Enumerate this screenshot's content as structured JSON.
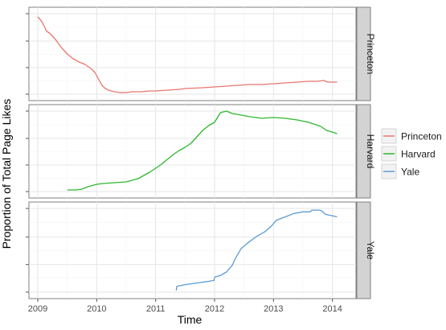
{
  "chart_data": {
    "type": "line",
    "xlabel": "Time",
    "ylabel": "Proportion of Total Page Likes",
    "xlim": [
      2008.85,
      2014.4
    ],
    "x_ticks": [
      2009,
      2010,
      2011,
      2012,
      2013,
      2014
    ],
    "x_tick_labels": [
      "2009",
      "2010",
      "2011",
      "2012",
      "2013",
      "2014"
    ],
    "ylim": [
      0,
      1
    ],
    "y_tick_labels_shown": false,
    "grid": true,
    "facet_direction": "vertical",
    "legend_position": "right",
    "series": [
      {
        "name": "Princeton",
        "color": "#e8766f",
        "x": [
          2009.0,
          2009.05,
          2009.1,
          2009.15,
          2009.2,
          2009.3,
          2009.4,
          2009.5,
          2009.6,
          2009.7,
          2009.8,
          2009.9,
          2009.97,
          2010.05,
          2010.1,
          2010.15,
          2010.2,
          2010.3,
          2010.4,
          2010.5,
          2010.6,
          2010.75,
          2010.9,
          2011.0,
          2011.2,
          2011.4,
          2011.5,
          2011.8,
          2012.0,
          2012.2,
          2012.4,
          2012.6,
          2012.8,
          2013.0,
          2013.2,
          2013.4,
          2013.6,
          2013.75,
          2013.85,
          2013.92,
          2014.08
        ],
        "values": [
          0.96,
          0.92,
          0.86,
          0.78,
          0.76,
          0.68,
          0.58,
          0.5,
          0.44,
          0.4,
          0.37,
          0.32,
          0.27,
          0.16,
          0.1,
          0.07,
          0.05,
          0.03,
          0.02,
          0.02,
          0.03,
          0.03,
          0.04,
          0.04,
          0.05,
          0.06,
          0.07,
          0.08,
          0.09,
          0.1,
          0.11,
          0.12,
          0.12,
          0.13,
          0.14,
          0.15,
          0.16,
          0.16,
          0.17,
          0.15,
          0.15
        ]
      },
      {
        "name": "Harvard",
        "color": "#2eb82e",
        "x": [
          2009.5,
          2009.65,
          2009.75,
          2009.85,
          2010.0,
          2010.1,
          2010.3,
          2010.5,
          2010.7,
          2010.9,
          2011.0,
          2011.1,
          2011.2,
          2011.3,
          2011.4,
          2011.5,
          2011.6,
          2011.7,
          2011.8,
          2011.9,
          2012.0,
          2012.1,
          2012.2,
          2012.3,
          2012.45,
          2012.6,
          2012.8,
          2013.0,
          2013.2,
          2013.4,
          2013.6,
          2013.8,
          2013.9,
          2014.08
        ],
        "values": [
          0.02,
          0.02,
          0.03,
          0.06,
          0.09,
          0.1,
          0.11,
          0.12,
          0.16,
          0.24,
          0.29,
          0.34,
          0.4,
          0.46,
          0.51,
          0.55,
          0.6,
          0.68,
          0.76,
          0.82,
          0.86,
          0.98,
          1.0,
          0.97,
          0.95,
          0.93,
          0.91,
          0.92,
          0.91,
          0.89,
          0.86,
          0.81,
          0.76,
          0.72
        ]
      },
      {
        "name": "Yale",
        "color": "#5b9bd5",
        "x": [
          2011.35,
          2011.36,
          2011.5,
          2011.7,
          2011.9,
          2011.99,
          2012.0,
          2012.1,
          2012.2,
          2012.3,
          2012.35,
          2012.45,
          2012.55,
          2012.7,
          2012.85,
          2012.95,
          2013.05,
          2013.2,
          2013.35,
          2013.5,
          2013.62,
          2013.65,
          2013.78,
          2013.82,
          2013.88,
          2014.08
        ],
        "values": [
          0.02,
          0.07,
          0.09,
          0.11,
          0.13,
          0.14,
          0.18,
          0.2,
          0.24,
          0.32,
          0.4,
          0.52,
          0.58,
          0.66,
          0.72,
          0.78,
          0.86,
          0.9,
          0.94,
          0.96,
          0.96,
          0.98,
          0.98,
          0.97,
          0.93,
          0.9
        ]
      }
    ]
  }
}
